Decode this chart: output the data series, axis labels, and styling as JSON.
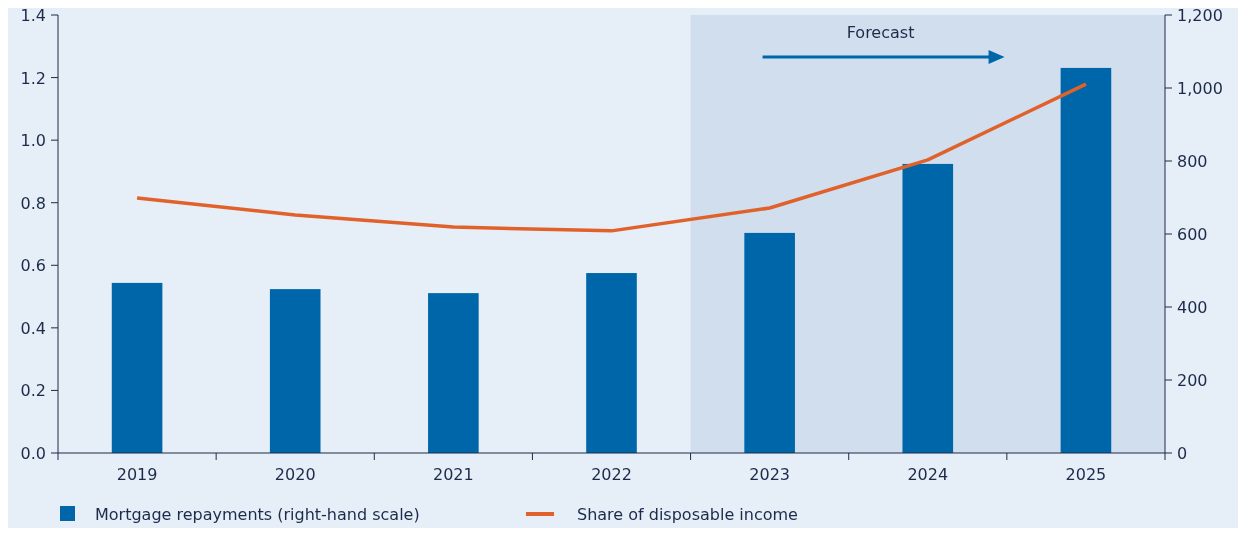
{
  "chart_data": {
    "type": "bar",
    "categories": [
      "2019",
      "2020",
      "2021",
      "2022",
      "2023",
      "2024",
      "2025"
    ],
    "series": [
      {
        "name": "Mortgage repayments (right-hand scale)",
        "axis": "y2",
        "color": "#0066aa",
        "values": [
          466,
          449,
          438,
          493,
          603,
          792,
          1055
        ]
      },
      {
        "name": "Share of disposable income",
        "type": "line",
        "color": "#e0622a",
        "values": [
          0.815,
          0.761,
          0.722,
          0.71,
          0.783,
          0.937,
          1.179
        ]
      }
    ],
    "ylim": [
      0,
      1.4
    ],
    "yticks": [
      {
        "value": 0,
        "label": "0.0"
      },
      0.2,
      0.4,
      0.6,
      0.8,
      {
        "value": 1,
        "label": "1.0"
      },
      1.2,
      1.4
    ],
    "y2lim": [
      0,
      1200
    ],
    "y2ticks": [
      0,
      200,
      400,
      600,
      800,
      {
        "value": 1000,
        "label": "1,000"
      },
      {
        "value": 1200,
        "label": "1,200"
      }
    ],
    "bands": [
      {
        "axis": "x",
        "from": "2023",
        "to": "2025",
        "label": "Forecast",
        "color": "#d0deee"
      }
    ],
    "legend": "bottom",
    "grid": false,
    "marker": "none",
    "line_style": "solid"
  }
}
